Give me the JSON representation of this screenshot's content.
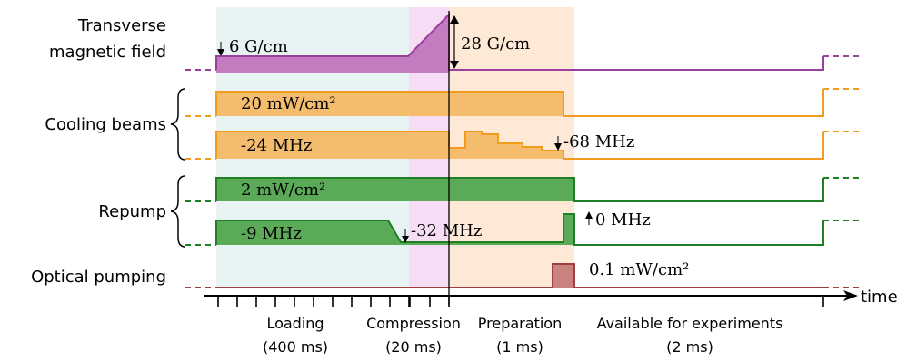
{
  "colors": {
    "loading_bg": "#e8f4f3",
    "compression_bg": "#f7dcf5",
    "preparation_bg": "#fde9d6",
    "magnetic": "#9b3f9c",
    "magnetic_fill": "#c27cbf",
    "cooling": "#f29b1f",
    "cooling_fill": "#f4bc6d",
    "repump": "#1f7f25",
    "repump_fill": "#5aaa57",
    "optical": "#a33e3e",
    "optical_fill": "#c98280"
  },
  "labels": {
    "magnetic_line1": "Transverse",
    "magnetic_line2": "magnetic field",
    "cooling": "Cooling beams",
    "repump": "Repump",
    "optical": "Optical pumping",
    "time_axis": "time"
  },
  "values": {
    "mag_start": "6 G/cm",
    "mag_peak": "28 G/cm",
    "cool_power": "20 mW/cm²",
    "cool_detuning": "-24 MHz",
    "cool_final_detuning": "-68 MHz",
    "rep_power": "2 mW/cm²",
    "rep_detuning": "-9 MHz",
    "rep_compressed_detuning": "-32 MHz",
    "rep_final_detuning": "0 MHz",
    "optical_power": "0.1 mW/cm²"
  },
  "phases": [
    {
      "name": "Loading",
      "duration": "(400 ms)"
    },
    {
      "name": "Compression",
      "duration": "(20 ms)"
    },
    {
      "name": "Preparation",
      "duration": "(1 ms)"
    },
    {
      "name": "Available for experiments",
      "duration": "(2 ms)"
    }
  ]
}
